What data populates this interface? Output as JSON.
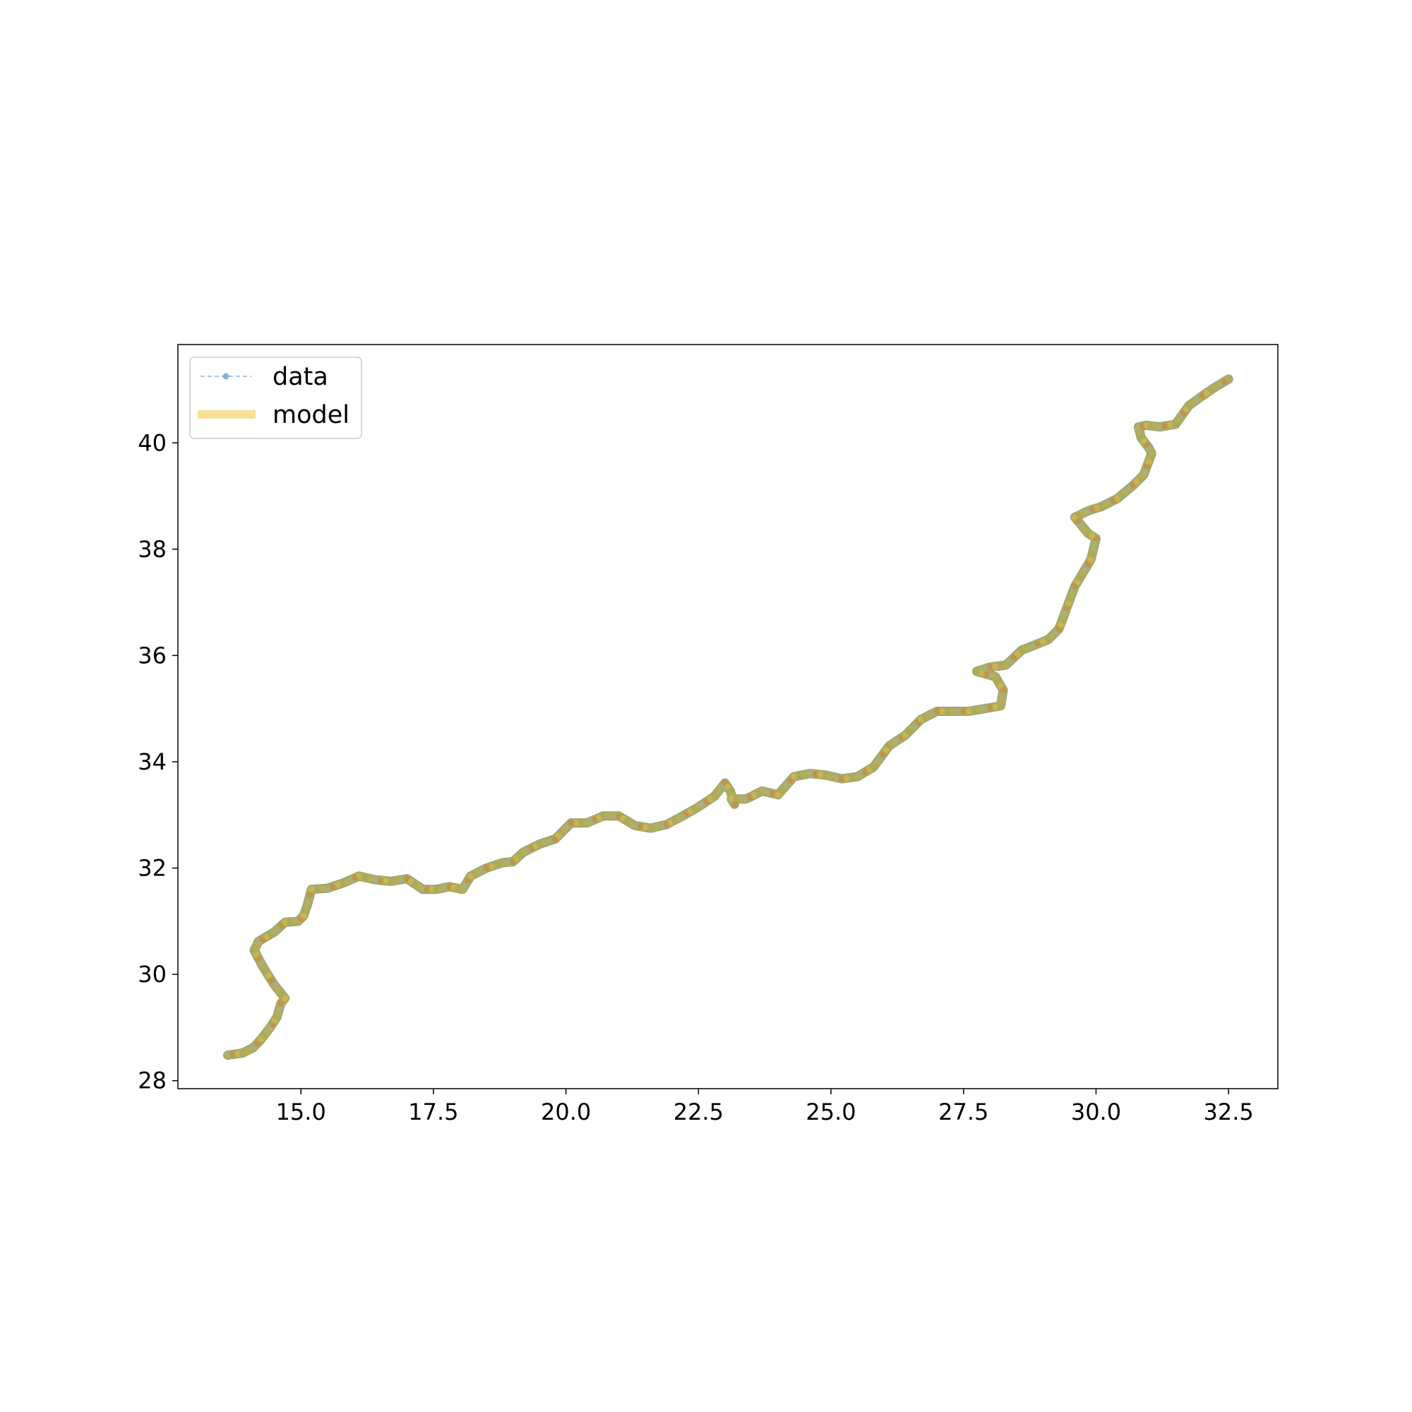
{
  "chart_data": {
    "type": "line",
    "title": "",
    "xlabel": "",
    "ylabel": "",
    "xlim": [
      12.68,
      33.43
    ],
    "ylim": [
      27.85,
      41.85
    ],
    "x_ticks": [
      "15.0",
      "17.5",
      "20.0",
      "22.5",
      "25.0",
      "27.5",
      "30.0",
      "32.5"
    ],
    "x_tick_values": [
      15.0,
      17.5,
      20.0,
      22.5,
      25.0,
      27.5,
      30.0,
      32.5
    ],
    "y_ticks": [
      "28",
      "30",
      "32",
      "34",
      "36",
      "38",
      "40"
    ],
    "y_tick_values": [
      28,
      30,
      32,
      34,
      36,
      38,
      40
    ],
    "grid": false,
    "legend_position": "top-left",
    "series": [
      {
        "name": "data",
        "style": "dashed line with circle markers",
        "color": "#6a9fd1",
        "x": [
          13.62,
          13.9,
          14.1,
          14.25,
          14.42,
          14.55,
          14.62,
          14.7,
          14.5,
          14.28,
          14.12,
          14.2,
          14.5,
          14.7,
          14.95,
          15.05,
          15.12,
          15.2,
          15.5,
          15.8,
          16.1,
          16.4,
          16.7,
          17.0,
          17.3,
          17.55,
          17.8,
          18.05,
          18.2,
          18.5,
          18.8,
          19.0,
          19.2,
          19.5,
          19.8,
          20.1,
          20.4,
          20.7,
          21.0,
          21.3,
          21.6,
          21.9,
          22.2,
          22.5,
          22.8,
          23.0,
          23.1,
          23.18,
          23.12,
          23.4,
          23.7,
          24.0,
          24.3,
          24.6,
          24.9,
          25.2,
          25.5,
          25.8,
          26.1,
          26.4,
          26.7,
          27.0,
          27.3,
          27.6,
          27.9,
          28.2,
          28.25,
          28.1,
          27.75,
          28.0,
          28.3,
          28.6,
          28.9,
          29.1,
          29.3,
          29.45,
          29.6,
          29.75,
          29.9,
          30.0,
          29.85,
          29.6,
          29.85,
          30.1,
          30.4,
          30.7,
          30.9,
          31.05,
          31.0,
          30.85,
          30.8,
          30.95,
          31.2,
          31.5,
          31.75,
          32.0,
          32.25,
          32.5
        ],
        "y": [
          28.48,
          28.52,
          28.62,
          28.78,
          29.0,
          29.2,
          29.45,
          29.55,
          29.8,
          30.15,
          30.45,
          30.62,
          30.8,
          30.98,
          31.0,
          31.1,
          31.3,
          31.6,
          31.62,
          31.72,
          31.85,
          31.78,
          31.75,
          31.8,
          31.6,
          31.6,
          31.65,
          31.6,
          31.85,
          32.0,
          32.1,
          32.12,
          32.3,
          32.45,
          32.55,
          32.85,
          32.85,
          32.98,
          32.98,
          32.8,
          32.75,
          32.82,
          32.98,
          33.15,
          33.35,
          33.6,
          33.45,
          33.2,
          33.3,
          33.3,
          33.45,
          33.38,
          33.72,
          33.78,
          33.75,
          33.68,
          33.72,
          33.9,
          34.3,
          34.5,
          34.8,
          34.95,
          34.95,
          34.95,
          35.0,
          35.05,
          35.35,
          35.6,
          35.7,
          35.78,
          35.82,
          36.1,
          36.22,
          36.3,
          36.5,
          36.9,
          37.3,
          37.55,
          37.8,
          38.2,
          38.3,
          38.6,
          38.72,
          38.8,
          38.95,
          39.2,
          39.4,
          39.8,
          39.9,
          40.1,
          40.3,
          40.33,
          40.3,
          40.35,
          40.7,
          40.88,
          41.05,
          41.2
        ]
      },
      {
        "name": "model",
        "style": "thick translucent line",
        "color": "#f5c842",
        "x": [
          13.62,
          13.9,
          14.1,
          14.25,
          14.42,
          14.55,
          14.62,
          14.7,
          14.5,
          14.28,
          14.12,
          14.2,
          14.5,
          14.7,
          14.95,
          15.05,
          15.12,
          15.2,
          15.5,
          15.8,
          16.1,
          16.4,
          16.7,
          17.0,
          17.3,
          17.55,
          17.8,
          18.05,
          18.2,
          18.5,
          18.8,
          19.0,
          19.2,
          19.5,
          19.8,
          20.1,
          20.4,
          20.7,
          21.0,
          21.3,
          21.6,
          21.9,
          22.2,
          22.5,
          22.8,
          23.0,
          23.1,
          23.18,
          23.12,
          23.4,
          23.7,
          24.0,
          24.3,
          24.6,
          24.9,
          25.2,
          25.5,
          25.8,
          26.1,
          26.4,
          26.7,
          27.0,
          27.3,
          27.6,
          27.9,
          28.2,
          28.25,
          28.1,
          27.75,
          28.0,
          28.3,
          28.6,
          28.9,
          29.1,
          29.3,
          29.45,
          29.6,
          29.75,
          29.9,
          30.0,
          29.85,
          29.6,
          29.85,
          30.1,
          30.4,
          30.7,
          30.9,
          31.05,
          31.0,
          30.85,
          30.8,
          30.95,
          31.2,
          31.5,
          31.75,
          32.0,
          32.25,
          32.5
        ],
        "y": [
          28.48,
          28.52,
          28.62,
          28.78,
          29.0,
          29.2,
          29.45,
          29.55,
          29.8,
          30.15,
          30.45,
          30.62,
          30.8,
          30.98,
          31.0,
          31.1,
          31.3,
          31.6,
          31.62,
          31.72,
          31.85,
          31.78,
          31.75,
          31.8,
          31.6,
          31.6,
          31.65,
          31.6,
          31.85,
          32.0,
          32.1,
          32.12,
          32.3,
          32.45,
          32.55,
          32.85,
          32.85,
          32.98,
          32.98,
          32.8,
          32.75,
          32.82,
          32.98,
          33.15,
          33.35,
          33.6,
          33.45,
          33.2,
          33.3,
          33.3,
          33.45,
          33.38,
          33.72,
          33.78,
          33.75,
          33.68,
          33.72,
          33.9,
          34.3,
          34.5,
          34.8,
          34.95,
          34.95,
          34.95,
          35.0,
          35.05,
          35.35,
          35.6,
          35.7,
          35.78,
          35.82,
          36.1,
          36.22,
          36.3,
          36.5,
          36.9,
          37.3,
          37.55,
          37.8,
          38.2,
          38.3,
          38.6,
          38.72,
          38.8,
          38.95,
          39.2,
          39.4,
          39.8,
          39.9,
          40.1,
          40.3,
          40.33,
          40.3,
          40.35,
          40.7,
          40.88,
          41.05,
          41.2
        ]
      }
    ],
    "legend": [
      {
        "label": "data",
        "color": "#6a9fd1"
      },
      {
        "label": "model",
        "color": "#f5c842"
      }
    ]
  }
}
